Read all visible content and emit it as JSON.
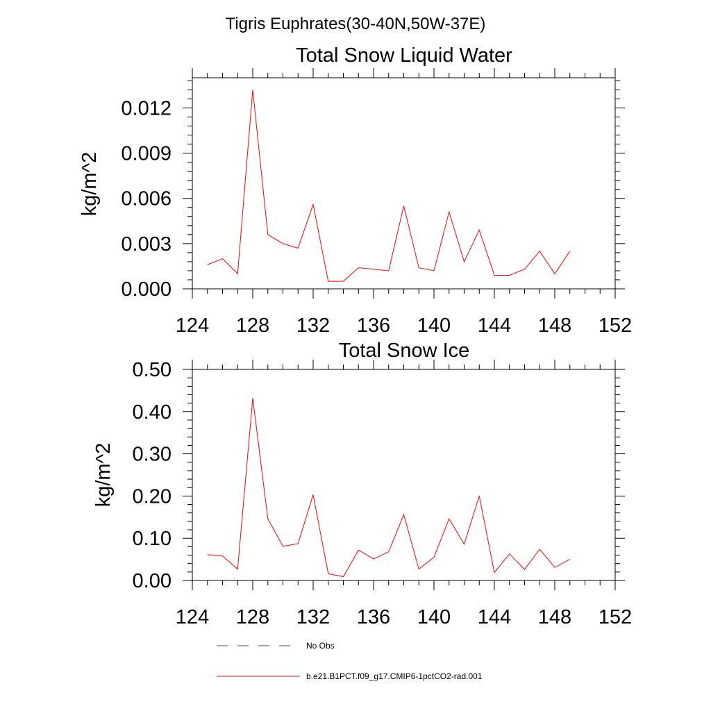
{
  "figure": {
    "suptitle": "Tigris Euphrates(30-40N,50W-37E)"
  },
  "chart_data": [
    {
      "type": "line",
      "title": "Total Snow Liquid Water",
      "xlabel": "",
      "ylabel": "kg/m^2",
      "xlim": [
        124,
        152
      ],
      "ylim": [
        0,
        0.014
      ],
      "xticks": [
        "124",
        "128",
        "132",
        "136",
        "140",
        "144",
        "148",
        "152"
      ],
      "yticks": [
        "0.000",
        "0.003",
        "0.006",
        "0.009",
        "0.012"
      ],
      "grid": false,
      "x": [
        125,
        126,
        127,
        128,
        129,
        130,
        131,
        132,
        133,
        134,
        135,
        136,
        137,
        138,
        139,
        140,
        141,
        142,
        143,
        144,
        145,
        146,
        147,
        148,
        149
      ],
      "series": [
        {
          "name": "b.e21.B1PCT.f09_g17.CMIP6-1pctCO2-rad.001",
          "color": "#ff0000",
          "values": [
            0.0016,
            0.002,
            0.001,
            0.0132,
            0.0036,
            0.003,
            0.0027,
            0.0056,
            0.0005,
            0.0005,
            0.0014,
            0.0013,
            0.0012,
            0.0055,
            0.0014,
            0.0012,
            0.0051,
            0.0018,
            0.0039,
            0.0009,
            0.0009,
            0.0013,
            0.0025,
            0.001,
            0.0025
          ]
        }
      ]
    },
    {
      "type": "line",
      "title": "Total Snow Ice",
      "xlabel": "",
      "ylabel": "kg/m^2",
      "xlim": [
        124,
        152
      ],
      "ylim": [
        0,
        0.5
      ],
      "xticks": [
        "124",
        "128",
        "132",
        "136",
        "140",
        "144",
        "148",
        "152"
      ],
      "yticks": [
        "0.00",
        "0.10",
        "0.20",
        "0.30",
        "0.40",
        "0.50"
      ],
      "grid": false,
      "x": [
        125,
        126,
        127,
        128,
        129,
        130,
        131,
        132,
        133,
        134,
        135,
        136,
        137,
        138,
        139,
        140,
        141,
        142,
        143,
        144,
        145,
        146,
        147,
        148,
        149
      ],
      "series": [
        {
          "name": "b.e21.B1PCT.f09_g17.CMIP6-1pctCO2-rad.001",
          "color": "#ff0000",
          "values": [
            0.061,
            0.058,
            0.027,
            0.432,
            0.146,
            0.081,
            0.087,
            0.203,
            0.016,
            0.009,
            0.072,
            0.051,
            0.068,
            0.156,
            0.027,
            0.055,
            0.146,
            0.086,
            0.2,
            0.019,
            0.063,
            0.026,
            0.074,
            0.031,
            0.05
          ]
        }
      ]
    }
  ],
  "legend": {
    "placement": "bottom",
    "items": [
      {
        "label": "No Obs",
        "style": "dashed",
        "color": "#4a5078"
      },
      {
        "label": "b.e21.B1PCT.f09_g17.CMIP6-1pctCO2-rad.001",
        "style": "solid",
        "color": "#ff0000"
      }
    ]
  }
}
